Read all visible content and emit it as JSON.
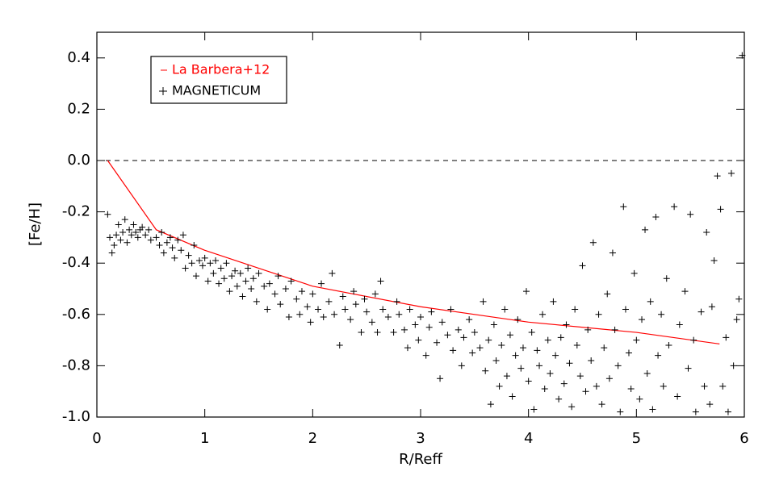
{
  "chart_data": {
    "type": "scatter",
    "xlabel": "R/Reff",
    "ylabel": "[Fe/H]",
    "xlim": [
      0,
      6
    ],
    "xticks": [
      0,
      1,
      2,
      3,
      4,
      5,
      6
    ],
    "ylim": [
      -1.0,
      0.5
    ],
    "yticks": [
      {
        "value": -1.0,
        "label": "-1.0"
      },
      -0.8,
      -0.6,
      -0.4,
      -0.2,
      {
        "value": 0.0,
        "label": "0.0"
      },
      0.2,
      0.4
    ],
    "reference_line": {
      "y": 0,
      "style": "dashed",
      "color": "#000000"
    },
    "legend": "upper left",
    "series": [
      {
        "name": "La Barbera+12",
        "type": "line",
        "color": "#ff0000",
        "x": [
          0.1,
          0.55,
          1.0,
          2.0,
          3.0,
          4.0,
          5.0,
          5.77
        ],
        "y": [
          0.0,
          -0.27,
          -0.35,
          -0.49,
          -0.57,
          -0.63,
          -0.67,
          -0.715
        ]
      },
      {
        "name": "MAGNETICUM",
        "type": "scatter",
        "marker": "+",
        "color": "#000000",
        "x": [
          0.1,
          0.12,
          0.14,
          0.16,
          0.18,
          0.2,
          0.22,
          0.24,
          0.26,
          0.28,
          0.3,
          0.32,
          0.34,
          0.36,
          0.38,
          0.4,
          0.42,
          0.45,
          0.48,
          0.5,
          0.55,
          0.58,
          0.6,
          0.62,
          0.65,
          0.68,
          0.7,
          0.72,
          0.75,
          0.78,
          0.8,
          0.82,
          0.85,
          0.88,
          0.9,
          0.92,
          0.95,
          0.98,
          1.0,
          1.03,
          1.05,
          1.08,
          1.1,
          1.13,
          1.15,
          1.18,
          1.2,
          1.23,
          1.25,
          1.28,
          1.3,
          1.33,
          1.35,
          1.38,
          1.4,
          1.43,
          1.45,
          1.48,
          1.5,
          1.55,
          1.58,
          1.6,
          1.65,
          1.68,
          1.7,
          1.75,
          1.78,
          1.8,
          1.85,
          1.88,
          1.9,
          1.95,
          1.98,
          2.0,
          2.05,
          2.08,
          2.1,
          2.15,
          2.18,
          2.2,
          2.25,
          2.28,
          2.3,
          2.35,
          2.38,
          2.4,
          2.45,
          2.48,
          2.5,
          2.55,
          2.58,
          2.6,
          2.63,
          2.65,
          2.7,
          2.75,
          2.78,
          2.8,
          2.85,
          2.88,
          2.9,
          2.95,
          2.98,
          3.0,
          3.05,
          3.08,
          3.1,
          3.15,
          3.18,
          3.2,
          3.25,
          3.28,
          3.3,
          3.35,
          3.38,
          3.4,
          3.45,
          3.48,
          3.5,
          3.55,
          3.58,
          3.6,
          3.63,
          3.65,
          3.68,
          3.7,
          3.73,
          3.75,
          3.78,
          3.8,
          3.83,
          3.85,
          3.88,
          3.9,
          3.93,
          3.95,
          3.98,
          4.0,
          4.03,
          4.05,
          4.08,
          4.1,
          4.13,
          4.15,
          4.18,
          4.2,
          4.23,
          4.25,
          4.28,
          4.3,
          4.33,
          4.35,
          4.38,
          4.4,
          4.43,
          4.45,
          4.48,
          4.5,
          4.53,
          4.55,
          4.58,
          4.6,
          4.63,
          4.65,
          4.68,
          4.7,
          4.73,
          4.75,
          4.78,
          4.8,
          4.83,
          4.85,
          4.88,
          4.9,
          4.93,
          4.95,
          4.98,
          5.0,
          5.03,
          5.05,
          5.08,
          5.1,
          5.13,
          5.15,
          5.18,
          5.2,
          5.23,
          5.25,
          5.28,
          5.3,
          5.35,
          5.38,
          5.4,
          5.45,
          5.48,
          5.5,
          5.53,
          5.55,
          5.6,
          5.63,
          5.65,
          5.68,
          5.7,
          5.72,
          5.75,
          5.78,
          5.8,
          5.83,
          5.85,
          5.88,
          5.9,
          5.93,
          5.95,
          5.98
        ],
        "y": [
          -0.21,
          -0.3,
          -0.36,
          -0.33,
          -0.29,
          -0.25,
          -0.31,
          -0.28,
          -0.23,
          -0.32,
          -0.27,
          -0.29,
          -0.25,
          -0.28,
          -0.3,
          -0.27,
          -0.26,
          -0.29,
          -0.27,
          -0.31,
          -0.3,
          -0.33,
          -0.28,
          -0.36,
          -0.32,
          -0.3,
          -0.34,
          -0.38,
          -0.31,
          -0.35,
          -0.29,
          -0.42,
          -0.37,
          -0.4,
          -0.33,
          -0.45,
          -0.39,
          -0.41,
          -0.38,
          -0.47,
          -0.4,
          -0.44,
          -0.39,
          -0.48,
          -0.42,
          -0.46,
          -0.4,
          -0.51,
          -0.45,
          -0.43,
          -0.49,
          -0.44,
          -0.53,
          -0.47,
          -0.42,
          -0.5,
          -0.46,
          -0.55,
          -0.44,
          -0.49,
          -0.58,
          -0.48,
          -0.52,
          -0.45,
          -0.56,
          -0.5,
          -0.61,
          -0.47,
          -0.54,
          -0.6,
          -0.51,
          -0.57,
          -0.63,
          -0.52,
          -0.58,
          -0.48,
          -0.61,
          -0.55,
          -0.44,
          -0.6,
          -0.72,
          -0.53,
          -0.58,
          -0.62,
          -0.51,
          -0.56,
          -0.67,
          -0.54,
          -0.59,
          -0.63,
          -0.52,
          -0.67,
          -0.47,
          -0.58,
          -0.61,
          -0.67,
          -0.55,
          -0.6,
          -0.66,
          -0.73,
          -0.58,
          -0.64,
          -0.7,
          -0.61,
          -0.76,
          -0.65,
          -0.59,
          -0.71,
          -0.85,
          -0.63,
          -0.68,
          -0.58,
          -0.74,
          -0.66,
          -0.8,
          -0.69,
          -0.62,
          -0.75,
          -0.67,
          -0.73,
          -0.55,
          -0.82,
          -0.7,
          -0.95,
          -0.64,
          -0.78,
          -0.88,
          -0.72,
          -0.58,
          -0.84,
          -0.68,
          -0.92,
          -0.76,
          -0.62,
          -0.81,
          -0.73,
          -0.51,
          -0.86,
          -0.67,
          -0.97,
          -0.74,
          -0.8,
          -0.6,
          -0.89,
          -0.7,
          -0.83,
          -0.55,
          -0.76,
          -0.93,
          -0.69,
          -0.87,
          -0.64,
          -0.79,
          -0.96,
          -0.58,
          -0.72,
          -0.84,
          -0.41,
          -0.9,
          -0.66,
          -0.78,
          -0.32,
          -0.88,
          -0.6,
          -0.95,
          -0.73,
          -0.52,
          -0.85,
          -0.36,
          -0.66,
          -0.8,
          -0.98,
          -0.18,
          -0.58,
          -0.75,
          -0.89,
          -0.44,
          -0.7,
          -0.93,
          -0.62,
          -0.27,
          -0.83,
          -0.55,
          -0.97,
          -0.22,
          -0.76,
          -0.6,
          -0.88,
          -0.46,
          -0.72,
          -0.18,
          -0.92,
          -0.64,
          -0.51,
          -0.81,
          -0.21,
          -0.7,
          -0.98,
          -0.59,
          -0.88,
          -0.28,
          -0.95,
          -0.57,
          -0.39,
          -0.06,
          -0.19,
          -0.88,
          -0.69,
          -0.98,
          -0.05,
          -0.8,
          -0.62,
          -0.54,
          0.41
        ]
      }
    ]
  }
}
